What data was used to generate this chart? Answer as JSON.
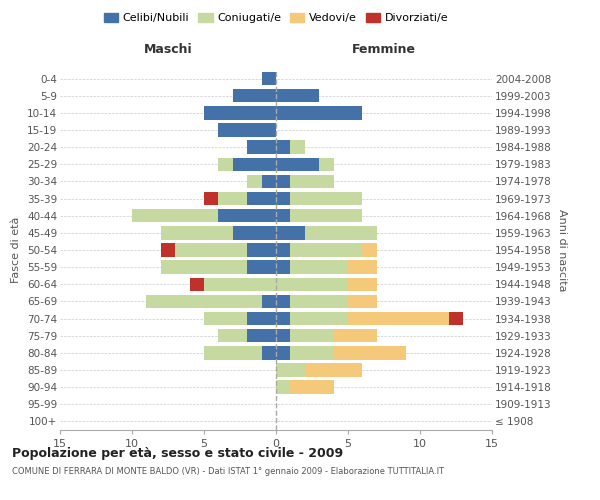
{
  "age_groups": [
    "100+",
    "95-99",
    "90-94",
    "85-89",
    "80-84",
    "75-79",
    "70-74",
    "65-69",
    "60-64",
    "55-59",
    "50-54",
    "45-49",
    "40-44",
    "35-39",
    "30-34",
    "25-29",
    "20-24",
    "15-19",
    "10-14",
    "5-9",
    "0-4"
  ],
  "birth_years": [
    "≤ 1908",
    "1909-1913",
    "1914-1918",
    "1919-1923",
    "1924-1928",
    "1929-1933",
    "1934-1938",
    "1939-1943",
    "1944-1948",
    "1949-1953",
    "1954-1958",
    "1959-1963",
    "1964-1968",
    "1969-1973",
    "1974-1978",
    "1979-1983",
    "1984-1988",
    "1989-1993",
    "1994-1998",
    "1999-2003",
    "2004-2008"
  ],
  "colors": {
    "celibi": "#4472a8",
    "coniugati": "#c5d9a0",
    "vedovi": "#f5c97a",
    "divorziati": "#c0312b"
  },
  "males": {
    "celibi": [
      0,
      0,
      0,
      0,
      1,
      2,
      2,
      1,
      0,
      2,
      2,
      3,
      4,
      2,
      1,
      3,
      2,
      4,
      5,
      3,
      1
    ],
    "coniugati": [
      0,
      0,
      0,
      0,
      4,
      2,
      3,
      8,
      5,
      6,
      5,
      5,
      6,
      2,
      1,
      1,
      0,
      0,
      0,
      0,
      0
    ],
    "vedovi": [
      0,
      0,
      0,
      0,
      0,
      0,
      0,
      0,
      0,
      0,
      0,
      0,
      0,
      0,
      0,
      0,
      0,
      0,
      0,
      0,
      0
    ],
    "divorziati": [
      0,
      0,
      0,
      0,
      0,
      0,
      0,
      0,
      1,
      0,
      1,
      0,
      0,
      1,
      0,
      0,
      0,
      0,
      0,
      0,
      0
    ]
  },
  "females": {
    "celibi": [
      0,
      0,
      0,
      0,
      1,
      1,
      1,
      1,
      0,
      1,
      1,
      2,
      1,
      1,
      1,
      3,
      1,
      0,
      6,
      3,
      0
    ],
    "coniugati": [
      0,
      0,
      1,
      2,
      3,
      3,
      4,
      4,
      5,
      4,
      5,
      5,
      5,
      5,
      3,
      1,
      1,
      0,
      0,
      0,
      0
    ],
    "vedovi": [
      0,
      0,
      3,
      4,
      5,
      3,
      7,
      2,
      2,
      2,
      1,
      0,
      0,
      0,
      0,
      0,
      0,
      0,
      0,
      0,
      0
    ],
    "divorziati": [
      0,
      0,
      0,
      0,
      0,
      0,
      1,
      0,
      0,
      0,
      0,
      0,
      0,
      0,
      0,
      0,
      0,
      0,
      0,
      0,
      0
    ]
  },
  "title": "Popolazione per età, sesso e stato civile - 2009",
  "subtitle": "COMUNE DI FERRARA DI MONTE BALDO (VR) - Dati ISTAT 1° gennaio 2009 - Elaborazione TUTTITALIA.IT",
  "xlabel_left": "Maschi",
  "xlabel_right": "Femmine",
  "ylabel_left": "Fasce di età",
  "ylabel_right": "Anni di nascita",
  "legend_labels": [
    "Celibi/Nubili",
    "Coniugati/e",
    "Vedovi/e",
    "Divorziati/e"
  ],
  "xlim": 15,
  "background_color": "#ffffff",
  "grid_color": "#cccccc"
}
